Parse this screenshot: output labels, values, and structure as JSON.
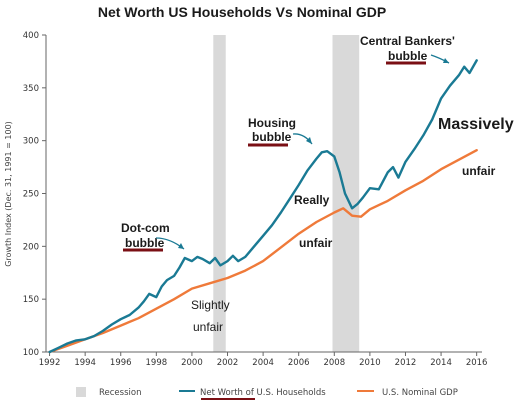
{
  "chart_data": {
    "type": "line",
    "title": "Net Worth US Households Vs Nominal GDP",
    "ylabel": "Growth Index (Dec. 31, 1991 = 100)",
    "xlim": [
      1991.8,
      2016.3
    ],
    "ylim": [
      100,
      400
    ],
    "x_ticks": [
      "1992",
      "1994",
      "1996",
      "1998",
      "2000",
      "2002",
      "2004",
      "2006",
      "2008",
      "2010",
      "2012",
      "2014",
      "2016"
    ],
    "y_ticks": [
      "100",
      "150",
      "200",
      "250",
      "300",
      "350",
      "400"
    ],
    "recessions": [
      {
        "start": 2001.2,
        "end": 2001.9
      },
      {
        "start": 2007.9,
        "end": 2009.4
      }
    ],
    "series": [
      {
        "name": "Net Worth of U.S. Households",
        "color": "#1a7a94",
        "x": [
          1992,
          1992.5,
          1993,
          1993.5,
          1994,
          1994.5,
          1995,
          1995.5,
          1996,
          1996.5,
          1997,
          1997.3,
          1997.6,
          1998,
          1998.3,
          1998.6,
          1999,
          1999.3,
          1999.6,
          2000,
          2000.3,
          2000.6,
          2001,
          2001.3,
          2001.6,
          2002,
          2002.3,
          2002.6,
          2003,
          2003.5,
          2004,
          2004.5,
          2005,
          2005.5,
          2006,
          2006.5,
          2007,
          2007.3,
          2007.6,
          2008,
          2008.3,
          2008.6,
          2009,
          2009.3,
          2009.6,
          2010,
          2010.5,
          2011,
          2011.3,
          2011.6,
          2012,
          2012.5,
          2013,
          2013.5,
          2014,
          2014.5,
          2015,
          2015.3,
          2015.6,
          2016
        ],
        "values": [
          100,
          104,
          108,
          111,
          112,
          115,
          120,
          126,
          131,
          135,
          142,
          148,
          155,
          152,
          162,
          168,
          172,
          180,
          189,
          186,
          190,
          188,
          184,
          189,
          182,
          186,
          191,
          186,
          190,
          200,
          210,
          220,
          232,
          245,
          258,
          272,
          283,
          289,
          290,
          285,
          270,
          250,
          236,
          240,
          246,
          255,
          254,
          270,
          275,
          265,
          280,
          292,
          305,
          320,
          340,
          352,
          362,
          370,
          364,
          376
        ]
      },
      {
        "name": "U.S. Nominal GDP",
        "color": "#ef7a3a",
        "x": [
          1992,
          1993,
          1994,
          1995,
          1996,
          1997,
          1998,
          1999,
          2000,
          2001,
          2002,
          2003,
          2004,
          2005,
          2006,
          2007,
          2008,
          2008.5,
          2009,
          2009.5,
          2010,
          2011,
          2012,
          2013,
          2014,
          2015,
          2016
        ],
        "values": [
          100,
          106,
          112,
          118,
          125,
          132,
          141,
          150,
          160,
          165,
          170,
          177,
          186,
          199,
          212,
          223,
          232,
          236,
          229,
          228,
          235,
          243,
          253,
          262,
          273,
          282,
          291
        ]
      }
    ],
    "legend": {
      "position": "bottom",
      "items": [
        "Recession",
        "Net Worth of U.S. Households",
        "U.S. Nominal GDP"
      ]
    },
    "annotations": [
      {
        "text": "Dot-com",
        "style": "bold"
      },
      {
        "text": "bubble",
        "style": "bold"
      },
      {
        "text": "Housing",
        "style": "bold"
      },
      {
        "text": "bubble",
        "style": "bold"
      },
      {
        "text": "Central Bankers'",
        "style": "bold"
      },
      {
        "text": "bubble",
        "style": "bold"
      },
      {
        "text": "Massively",
        "style": "big"
      },
      {
        "text": "unfair",
        "style": "bold"
      },
      {
        "text": "Really",
        "style": "bold"
      },
      {
        "text": "unfair",
        "style": "bold"
      },
      {
        "text": "Slightly",
        "style": "regular"
      },
      {
        "text": "unfair",
        "style": "regular"
      }
    ]
  },
  "colors": {
    "underline": "#7a0f14",
    "recession": "#d9d9d9",
    "axis": "#666666"
  }
}
